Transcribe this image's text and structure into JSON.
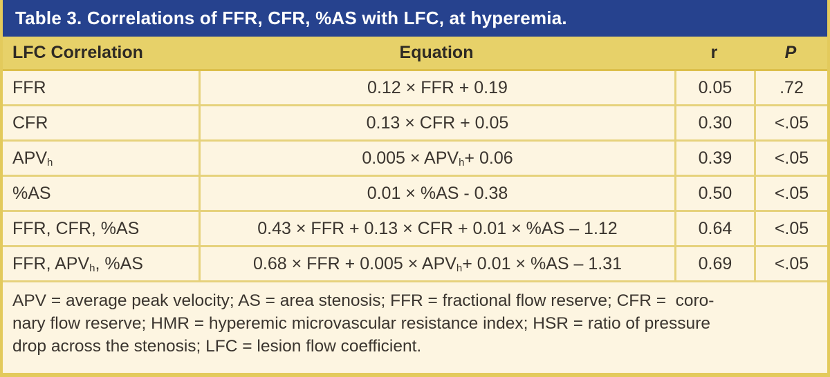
{
  "title": "Table 3. Correlations of FFR, CFR, %AS with LFC, at hyperemia.",
  "colors": {
    "title_bar_bg": "#26428e",
    "title_text": "#ffffff",
    "header_bg": "#e7d169",
    "body_bg": "#fdf5e1",
    "frame_border": "#e3ca5c",
    "inner_border": "#e6d27c",
    "body_text": "#3b352f"
  },
  "header": {
    "col1": "LFC Correlation",
    "col2": "Equation",
    "col3": "r",
    "col4": "P"
  },
  "rows": [
    {
      "label": {
        "pre": "FFR",
        "sub": "",
        "post": ""
      },
      "eq": {
        "pre": "0.12 × FFR + 0.19",
        "sub": "",
        "post": ""
      },
      "r": "0.05",
      "p": ".72"
    },
    {
      "label": {
        "pre": "CFR",
        "sub": "",
        "post": ""
      },
      "eq": {
        "pre": "0.13 × CFR + 0.05",
        "sub": "",
        "post": ""
      },
      "r": "0.30",
      "p": "<.05"
    },
    {
      "label": {
        "pre": "APV",
        "sub": "h",
        "post": ""
      },
      "eq": {
        "pre": "0.005 × APV",
        "sub": "h",
        "post": " + 0.06"
      },
      "r": "0.39",
      "p": "<.05"
    },
    {
      "label": {
        "pre": "%AS",
        "sub": "",
        "post": ""
      },
      "eq": {
        "pre": "0.01 × %AS - 0.38",
        "sub": "",
        "post": ""
      },
      "r": "0.50",
      "p": "<.05"
    },
    {
      "label": {
        "pre": "FFR, CFR, %AS",
        "sub": "",
        "post": ""
      },
      "eq": {
        "pre": "0.43 × FFR + 0.13 × CFR + 0.01 × %AS – 1.12",
        "sub": "",
        "post": ""
      },
      "r": "0.64",
      "p": "<.05"
    },
    {
      "label": {
        "pre": "FFR, APV",
        "sub": "h",
        "post": ", %AS"
      },
      "eq": {
        "pre": "0.68 × FFR + 0.005 × APV",
        "sub": "h",
        "post": " + 0.01 × %AS – 1.31"
      },
      "r": "0.69",
      "p": "<.05"
    }
  ],
  "footnote": {
    "lines": [
      "APV = average peak velocity; AS = area stenosis; FFR = fractional flow reserve; CFR =  coro-",
      "nary flow reserve; HMR = hyperemic microvascular resistance index; HSR = ratio of pressure",
      "drop across the stenosis; LFC = lesion flow coefficient."
    ]
  }
}
